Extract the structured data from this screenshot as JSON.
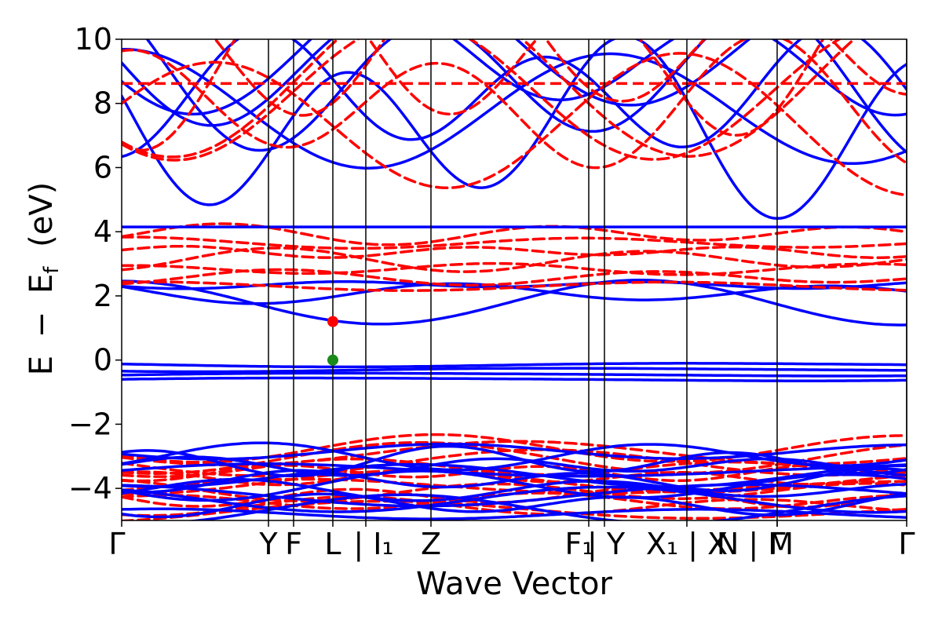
{
  "chart_data": {
    "type": "line",
    "title": "",
    "xlabel": "Wave Vector",
    "ylabel_parts": {
      "E": "E",
      "minus": "−",
      "Ef_base": "E",
      "Ef_sub": "f",
      "unit": "(eV)"
    },
    "ylim": [
      -5,
      10
    ],
    "yticks": [
      -4,
      -2,
      0,
      2,
      4,
      6,
      8,
      10
    ],
    "ytick_labels": [
      "−4",
      "−2",
      "0",
      "2",
      "4",
      "6",
      "8",
      "10"
    ],
    "xlim": [
      0,
      1
    ],
    "high_symmetry_points": [
      {
        "x": 0.0,
        "label": "Γ"
      },
      {
        "x": 0.187,
        "label": "Y"
      },
      {
        "x": 0.219,
        "label": "F"
      },
      {
        "x": 0.269,
        "label": "L"
      },
      {
        "x": 0.311,
        "label": "| I₁"
      },
      {
        "x": 0.394,
        "label": "Z"
      },
      {
        "x": 0.595,
        "label": "F₁"
      },
      {
        "x": 0.615,
        "label": "| Y"
      },
      {
        "x": 0.72,
        "label": "X₁ | X"
      },
      {
        "x": 0.835,
        "label": "Γ"
      },
      {
        "x": 0.835,
        "label": "N | M"
      },
      {
        "x": 1.0,
        "label": "Γ"
      }
    ],
    "gridlines_x": [
      0.187,
      0.219,
      0.269,
      0.311,
      0.394,
      0.595,
      0.615,
      0.72,
      0.835,
      1.0
    ],
    "grid": false,
    "series": [
      {
        "style": "solid",
        "color": "#0000ff"
      },
      {
        "style": "dashed",
        "color": "#ff0000"
      }
    ],
    "flat_bands": {
      "blue": [
        4.15
      ],
      "red_dashed": [
        8.62
      ]
    },
    "markers": [
      {
        "x": 0.269,
        "y": 1.2,
        "color": "#ff0000"
      },
      {
        "x": 0.269,
        "y": 0.0,
        "color": "#1a8a1a"
      }
    ]
  }
}
